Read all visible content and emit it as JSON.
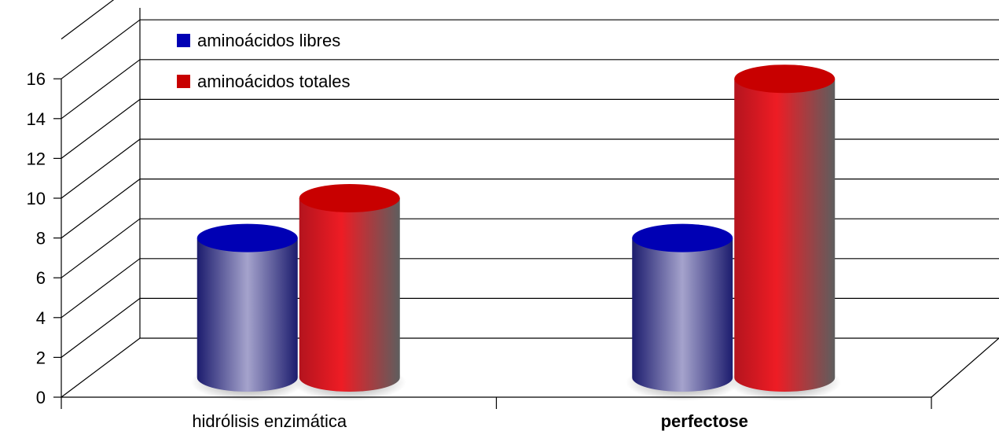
{
  "chart_data": {
    "type": "bar",
    "style": "3d-cylinder",
    "categories": [
      "hidrólisis enzimática",
      "perfectose"
    ],
    "category_bold": [
      false,
      true
    ],
    "series": [
      {
        "name": "aminoácidos libres",
        "values": [
          8,
          8
        ],
        "color": "#0000b4"
      },
      {
        "name": "aminoácidos totales",
        "values": [
          10,
          16
        ],
        "color": "#c80000"
      }
    ],
    "ylim": [
      0,
      16
    ],
    "yticks": [
      0,
      2,
      4,
      6,
      8,
      10,
      12,
      14,
      16
    ],
    "grid": true,
    "legend_position": "top-left"
  }
}
